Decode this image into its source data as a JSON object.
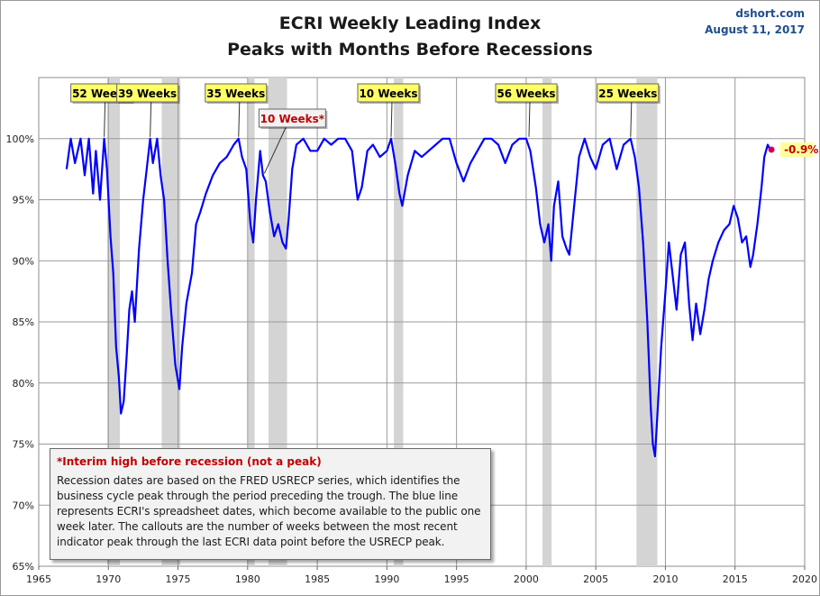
{
  "chart_data": {
    "type": "line",
    "title": "ECRI Weekly Leading Index",
    "subtitle": "Peaks with Months Before Recessions",
    "source": "dshort.com",
    "date": "August 11, 2017",
    "xlabel": "",
    "ylabel": "",
    "x_range": [
      1965,
      2020
    ],
    "y_range": [
      65,
      105
    ],
    "x_ticks": [
      "1965",
      "1970",
      "1975",
      "1980",
      "1985",
      "1990",
      "1995",
      "2000",
      "2005",
      "2010",
      "2015",
      "2020"
    ],
    "y_ticks": [
      "65%",
      "70%",
      "75%",
      "80%",
      "85%",
      "90%",
      "95%",
      "100%"
    ],
    "grid": true,
    "line_color": "#0000ff",
    "recession_color": "#d4d4d4",
    "recessions": [
      [
        1969.92,
        1970.83
      ],
      [
        1973.83,
        1975.17
      ],
      [
        1980.0,
        1980.5
      ],
      [
        1981.5,
        1982.83
      ],
      [
        1990.5,
        1991.17
      ],
      [
        2001.17,
        2001.83
      ],
      [
        2007.92,
        2009.42
      ]
    ],
    "series": [
      {
        "values": [
          [
            1967.0,
            97.5
          ],
          [
            1967.3,
            100.0
          ],
          [
            1967.6,
            98.0
          ],
          [
            1968.0,
            100.0
          ],
          [
            1968.3,
            97.0
          ],
          [
            1968.6,
            100.0
          ],
          [
            1968.9,
            95.5
          ],
          [
            1969.1,
            99.0
          ],
          [
            1969.4,
            95.0
          ],
          [
            1969.7,
            100.0
          ],
          [
            1969.9,
            97.5
          ],
          [
            1970.15,
            92.0
          ],
          [
            1970.35,
            89.0
          ],
          [
            1970.55,
            83.0
          ],
          [
            1970.75,
            80.5
          ],
          [
            1970.9,
            77.5
          ],
          [
            1971.1,
            78.5
          ],
          [
            1971.3,
            82.0
          ],
          [
            1971.5,
            86.0
          ],
          [
            1971.7,
            87.5
          ],
          [
            1971.9,
            85.0
          ],
          [
            1972.2,
            91.0
          ],
          [
            1972.5,
            95.0
          ],
          [
            1972.75,
            97.5
          ],
          [
            1973.0,
            100.0
          ],
          [
            1973.2,
            98.0
          ],
          [
            1973.5,
            100.0
          ],
          [
            1973.75,
            97.0
          ],
          [
            1974.0,
            95.0
          ],
          [
            1974.25,
            90.0
          ],
          [
            1974.5,
            86.0
          ],
          [
            1974.8,
            81.5
          ],
          [
            1975.1,
            79.5
          ],
          [
            1975.3,
            83.0
          ],
          [
            1975.6,
            86.5
          ],
          [
            1976.0,
            89.0
          ],
          [
            1976.3,
            93.0
          ],
          [
            1976.6,
            94.0
          ],
          [
            1977.0,
            95.5
          ],
          [
            1977.5,
            97.0
          ],
          [
            1978.0,
            98.0
          ],
          [
            1978.5,
            98.5
          ],
          [
            1979.0,
            99.5
          ],
          [
            1979.35,
            100.0
          ],
          [
            1979.6,
            98.5
          ],
          [
            1979.9,
            97.5
          ],
          [
            1980.2,
            93.0
          ],
          [
            1980.4,
            91.5
          ],
          [
            1980.6,
            95.0
          ],
          [
            1980.9,
            99.0
          ],
          [
            1981.1,
            97.0
          ],
          [
            1981.3,
            96.5
          ],
          [
            1981.6,
            94.0
          ],
          [
            1981.9,
            92.0
          ],
          [
            1982.2,
            93.0
          ],
          [
            1982.5,
            91.5
          ],
          [
            1982.75,
            91.0
          ],
          [
            1982.95,
            93.5
          ],
          [
            1983.2,
            97.5
          ],
          [
            1983.5,
            99.5
          ],
          [
            1984.0,
            100.0
          ],
          [
            1984.5,
            99.0
          ],
          [
            1985.0,
            99.0
          ],
          [
            1985.5,
            100.0
          ],
          [
            1986.0,
            99.5
          ],
          [
            1986.5,
            100.0
          ],
          [
            1987.0,
            100.0
          ],
          [
            1987.5,
            99.0
          ],
          [
            1987.9,
            95.0
          ],
          [
            1988.2,
            96.0
          ],
          [
            1988.6,
            99.0
          ],
          [
            1989.0,
            99.5
          ],
          [
            1989.5,
            98.5
          ],
          [
            1990.0,
            99.0
          ],
          [
            1990.3,
            100.0
          ],
          [
            1990.6,
            98.0
          ],
          [
            1990.9,
            95.5
          ],
          [
            1991.1,
            94.5
          ],
          [
            1991.5,
            97.0
          ],
          [
            1992.0,
            99.0
          ],
          [
            1992.5,
            98.5
          ],
          [
            1993.0,
            99.0
          ],
          [
            1993.5,
            99.5
          ],
          [
            1994.0,
            100.0
          ],
          [
            1994.5,
            100.0
          ],
          [
            1995.0,
            98.0
          ],
          [
            1995.5,
            96.5
          ],
          [
            1996.0,
            98.0
          ],
          [
            1996.5,
            99.0
          ],
          [
            1997.0,
            100.0
          ],
          [
            1997.5,
            100.0
          ],
          [
            1998.0,
            99.5
          ],
          [
            1998.5,
            98.0
          ],
          [
            1999.0,
            99.5
          ],
          [
            1999.5,
            100.0
          ],
          [
            2000.0,
            100.0
          ],
          [
            2000.3,
            99.0
          ],
          [
            2000.7,
            96.0
          ],
          [
            2001.0,
            93.0
          ],
          [
            2001.3,
            91.5
          ],
          [
            2001.6,
            93.0
          ],
          [
            2001.8,
            90.0
          ],
          [
            2002.0,
            94.5
          ],
          [
            2002.3,
            96.5
          ],
          [
            2002.6,
            92.0
          ],
          [
            2002.9,
            91.0
          ],
          [
            2003.1,
            90.5
          ],
          [
            2003.4,
            94.0
          ],
          [
            2003.8,
            98.5
          ],
          [
            2004.2,
            100.0
          ],
          [
            2004.6,
            98.5
          ],
          [
            2005.0,
            97.5
          ],
          [
            2005.5,
            99.5
          ],
          [
            2006.0,
            100.0
          ],
          [
            2006.5,
            97.5
          ],
          [
            2007.0,
            99.5
          ],
          [
            2007.5,
            100.0
          ],
          [
            2007.8,
            98.5
          ],
          [
            2008.1,
            96.0
          ],
          [
            2008.4,
            91.5
          ],
          [
            2008.7,
            85.0
          ],
          [
            2008.95,
            78.0
          ],
          [
            2009.1,
            75.0
          ],
          [
            2009.25,
            74.0
          ],
          [
            2009.45,
            78.0
          ],
          [
            2009.7,
            83.0
          ],
          [
            2010.0,
            87.5
          ],
          [
            2010.25,
            91.5
          ],
          [
            2010.5,
            89.0
          ],
          [
            2010.8,
            86.0
          ],
          [
            2011.1,
            90.5
          ],
          [
            2011.4,
            91.5
          ],
          [
            2011.7,
            86.5
          ],
          [
            2011.95,
            83.5
          ],
          [
            2012.2,
            86.5
          ],
          [
            2012.5,
            84.0
          ],
          [
            2012.8,
            86.0
          ],
          [
            2013.1,
            88.5
          ],
          [
            2013.4,
            90.0
          ],
          [
            2013.8,
            91.5
          ],
          [
            2014.2,
            92.5
          ],
          [
            2014.6,
            93.0
          ],
          [
            2014.9,
            94.5
          ],
          [
            2015.2,
            93.5
          ],
          [
            2015.5,
            91.5
          ],
          [
            2015.8,
            92.0
          ],
          [
            2016.1,
            89.5
          ],
          [
            2016.3,
            90.5
          ],
          [
            2016.6,
            93.0
          ],
          [
            2016.9,
            96.0
          ],
          [
            2017.1,
            98.5
          ],
          [
            2017.35,
            99.5
          ],
          [
            2017.55,
            99.0
          ],
          [
            2017.61,
            99.1
          ]
        ]
      }
    ],
    "callouts": [
      {
        "label": "52 Weeks",
        "x": 1969.7,
        "y": 100.0,
        "color": "#000000"
      },
      {
        "label": "39 Weeks",
        "x": 1973.0,
        "y": 100.0,
        "color": "#000000"
      },
      {
        "label": "35 Weeks",
        "x": 1979.35,
        "y": 100.0,
        "color": "#000000"
      },
      {
        "label": "10 Weeks*",
        "x": 1981.2,
        "y": 97.0,
        "color": "#c00000"
      },
      {
        "label": "10 Weeks",
        "x": 1990.3,
        "y": 100.0,
        "color": "#000000"
      },
      {
        "label": "56 Weeks",
        "x": 2000.2,
        "y": 100.0,
        "color": "#000000"
      },
      {
        "label": "25 Weeks",
        "x": 2007.5,
        "y": 100.0,
        "color": "#000000"
      }
    ],
    "last_point": {
      "x": 2017.61,
      "y": 99.1,
      "label": "-0.9%"
    }
  },
  "note": {
    "title": "*Interim high before recession (not a peak)",
    "body": "Recession dates are based on the FRED USRECP series, which identifies the business cycle peak through the period preceding the trough. The blue line represents ECRI's spreadsheet dates, which become available to the public one week later. The callouts are the number of weeks between the most recent indicator peak through the last ECRI data point before the USRECP peak."
  }
}
